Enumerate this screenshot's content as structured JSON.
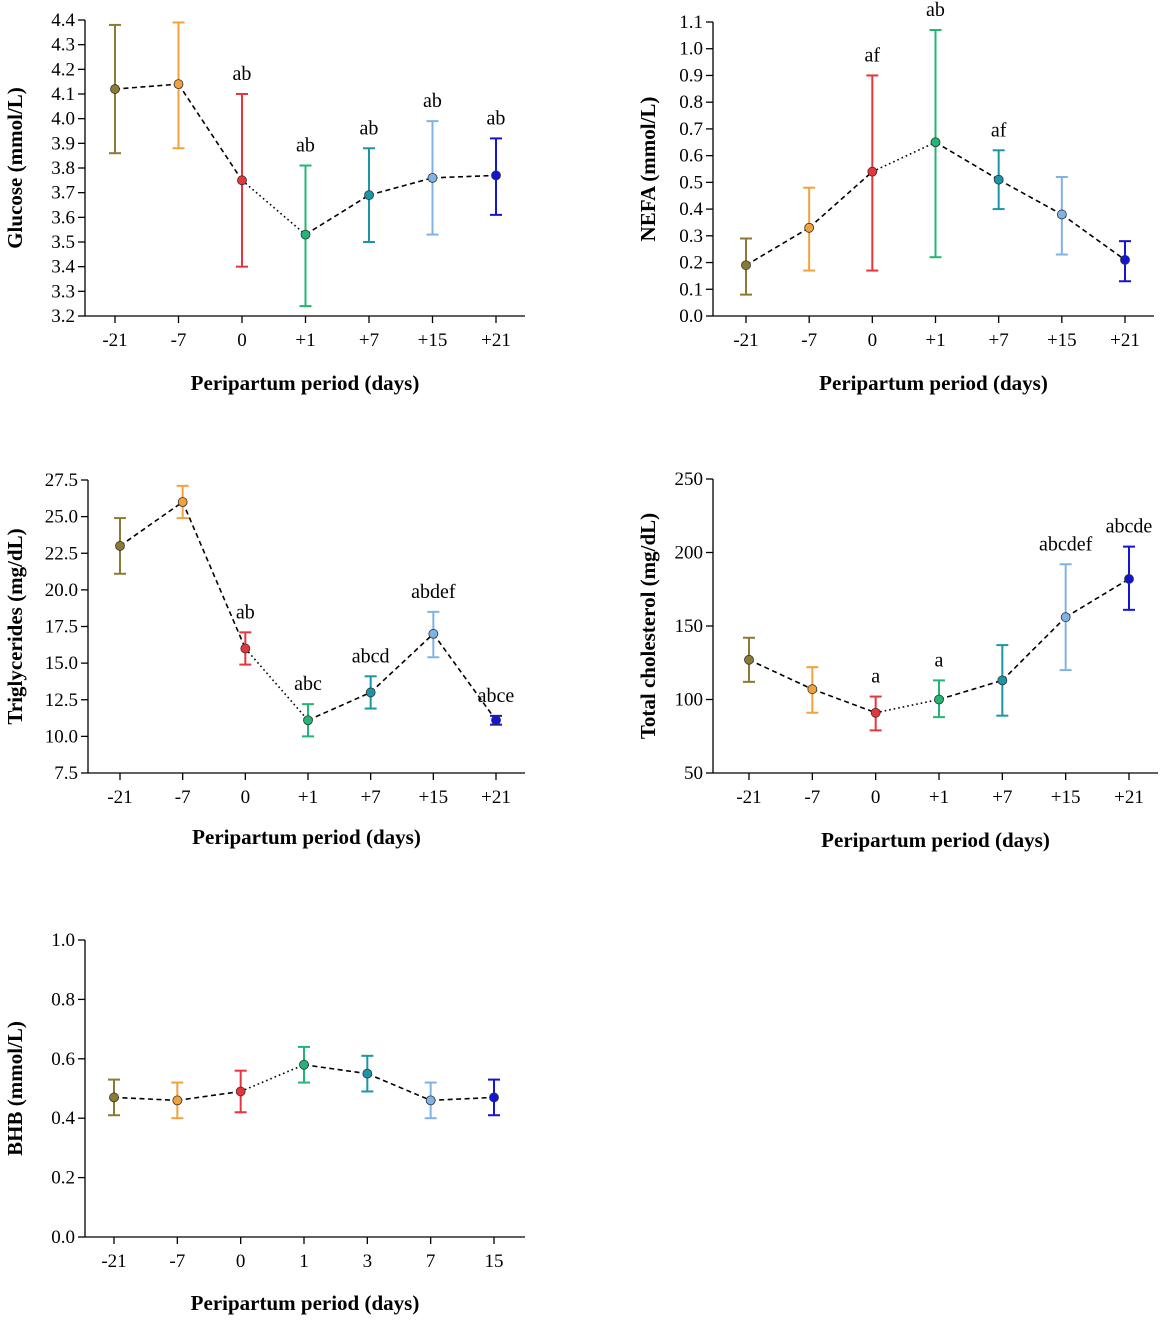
{
  "palette": [
    "#8a7a33",
    "#f2a23c",
    "#e8343c",
    "#22b573",
    "#1b95a8",
    "#7fb3e6",
    "#1414d4"
  ],
  "chart_data": [
    {
      "id": "glucose",
      "type": "line",
      "ylabel": "Glucose (mmol/L)",
      "xlabel": "Peripartum period (days)",
      "categories": [
        "-21",
        "-7",
        "0",
        "+1",
        "+7",
        "+15",
        "+21"
      ],
      "values": [
        4.12,
        4.14,
        3.75,
        3.53,
        3.69,
        3.76,
        3.77
      ],
      "err_low": [
        3.86,
        3.88,
        3.4,
        3.24,
        3.5,
        3.53,
        3.61
      ],
      "err_high": [
        4.38,
        4.39,
        4.1,
        3.81,
        3.88,
        3.99,
        3.92
      ],
      "labels": [
        "",
        "",
        "ab",
        "ab",
        "ab",
        "ab",
        "ab"
      ],
      "line_styles": [
        "dashed",
        "dashed",
        "dotted",
        "dashed",
        "dashed",
        "dashed"
      ],
      "ylim": [
        3.2,
        4.4
      ],
      "yticks": [
        "3.2",
        "3.3",
        "3.4",
        "3.5",
        "3.6",
        "3.7",
        "3.8",
        "3.9",
        "4.0",
        "4.1",
        "4.2",
        "4.3",
        "4.4"
      ]
    },
    {
      "id": "nefa",
      "type": "line",
      "ylabel": "NEFA (mmol/L)",
      "xlabel": "Peripartum period (days)",
      "categories": [
        "-21",
        "-7",
        "0",
        "+1",
        "+7",
        "+15",
        "+21"
      ],
      "values": [
        0.19,
        0.33,
        0.54,
        0.65,
        0.51,
        0.38,
        0.21
      ],
      "err_low": [
        0.08,
        0.17,
        0.17,
        0.22,
        0.4,
        0.23,
        0.13
      ],
      "err_high": [
        0.29,
        0.48,
        0.9,
        1.07,
        0.62,
        0.52,
        0.28
      ],
      "labels": [
        "",
        "",
        "af",
        "ab",
        "af",
        "",
        ""
      ],
      "line_styles": [
        "dashed",
        "dashed",
        "dotted",
        "dashed",
        "dashed",
        "dashed"
      ],
      "ylim": [
        0.0,
        1.1
      ],
      "yticks": [
        "0.0",
        "0.1",
        "0.2",
        "0.3",
        "0.4",
        "0.5",
        "0.6",
        "0.7",
        "0.8",
        "0.9",
        "1.0",
        "1.1"
      ]
    },
    {
      "id": "triglycerides",
      "type": "line",
      "ylabel": "Triglycerides (mg/dL)",
      "xlabel": "Peripartum period (days)",
      "categories": [
        "-21",
        "-7",
        "0",
        "+1",
        "+7",
        "+15",
        "+21"
      ],
      "values": [
        23.0,
        26.0,
        16.0,
        11.1,
        13.0,
        17.0,
        11.1
      ],
      "err_low": [
        21.1,
        24.9,
        14.9,
        10.0,
        11.9,
        15.4,
        10.8
      ],
      "err_high": [
        24.9,
        27.1,
        17.1,
        12.2,
        14.1,
        18.5,
        11.4
      ],
      "labels": [
        "",
        "",
        "ab",
        "abc",
        "abcd",
        "abdef",
        "abce"
      ],
      "line_styles": [
        "dashed",
        "dashed",
        "dotted",
        "dashed",
        "dashed",
        "dashed"
      ],
      "ylim": [
        7.5,
        27.5
      ],
      "yticks": [
        "7.5",
        "10.0",
        "12.5",
        "15.0",
        "17.5",
        "20.0",
        "22.5",
        "25.0",
        "27.5"
      ]
    },
    {
      "id": "cholesterol",
      "type": "line",
      "ylabel": "Total cholesterol (mg/dL)",
      "xlabel": "Peripartum period (days)",
      "categories": [
        "-21",
        "-7",
        "0",
        "+1",
        "+7",
        "+15",
        "+21"
      ],
      "values": [
        127,
        107,
        91,
        100,
        113,
        156,
        182
      ],
      "err_low": [
        112,
        91,
        79,
        88,
        89,
        120,
        161
      ],
      "err_high": [
        142,
        122,
        102,
        113,
        137,
        192,
        204
      ],
      "labels": [
        "",
        "",
        "a",
        "a",
        "",
        "abcdef",
        "abcde"
      ],
      "line_styles": [
        "dashed",
        "dashed",
        "dotted",
        "dashed",
        "dashed",
        "dashed"
      ],
      "ylim": [
        50,
        250
      ],
      "yticks": [
        "50",
        "100",
        "150",
        "200",
        "250"
      ]
    },
    {
      "id": "bhb",
      "type": "line",
      "ylabel": "BHB (mmol/L)",
      "xlabel": "Peripartum period (days)",
      "categories": [
        "-21",
        "-7",
        "0",
        "1",
        "3",
        "7",
        "15"
      ],
      "values": [
        0.47,
        0.46,
        0.49,
        0.58,
        0.55,
        0.46,
        0.47
      ],
      "err_low": [
        0.41,
        0.4,
        0.42,
        0.52,
        0.49,
        0.4,
        0.41
      ],
      "err_high": [
        0.53,
        0.52,
        0.56,
        0.64,
        0.61,
        0.52,
        0.53
      ],
      "labels": [
        "",
        "",
        "",
        "",
        "",
        "",
        ""
      ],
      "line_styles": [
        "dashed",
        "dashed",
        "dotted",
        "dashed",
        "dashed",
        "dashed"
      ],
      "ylim": [
        0.0,
        1.0
      ],
      "yticks": [
        "0.0",
        "0.2",
        "0.4",
        "0.6",
        "0.8",
        "1.0"
      ]
    }
  ]
}
